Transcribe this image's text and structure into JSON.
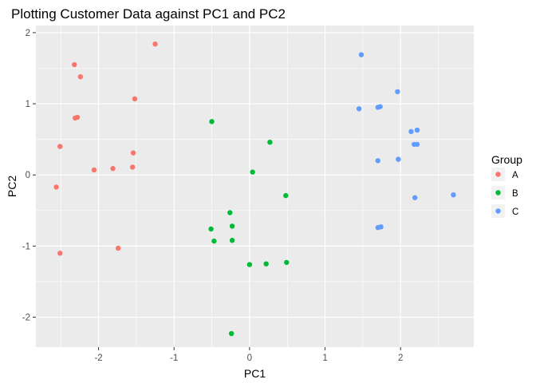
{
  "chart_data": {
    "type": "scatter",
    "title": "Plotting Customer Data against PC1 and PC2",
    "xlabel": "PC1",
    "ylabel": "PC2",
    "xlim": [
      -2.83,
      2.97
    ],
    "ylim": [
      -2.42,
      2.1
    ],
    "xticks": [
      -2,
      -1,
      0,
      1,
      2
    ],
    "yticks": [
      -2,
      -1,
      0,
      1,
      2
    ],
    "x_tick_labels": [
      "-2",
      "-1",
      "0",
      "1",
      "2"
    ],
    "y_tick_labels": [
      "-2",
      "-1",
      "0",
      "1",
      "2"
    ],
    "grid": true,
    "legend": {
      "title": "Group",
      "position": "right"
    },
    "series": [
      {
        "name": "A",
        "color": "#F8766D",
        "points": [
          [
            -1.25,
            1.84
          ],
          [
            -2.32,
            1.55
          ],
          [
            -2.24,
            1.38
          ],
          [
            -2.28,
            0.81
          ],
          [
            -2.31,
            0.8
          ],
          [
            -1.52,
            1.07
          ],
          [
            -2.51,
            0.4
          ],
          [
            -1.54,
            0.31
          ],
          [
            -2.06,
            0.07
          ],
          [
            -1.81,
            0.09
          ],
          [
            -1.55,
            0.11
          ],
          [
            -2.56,
            -0.17
          ],
          [
            -2.51,
            -1.1
          ],
          [
            -1.74,
            -1.03
          ]
        ]
      },
      {
        "name": "B",
        "color": "#00BA38",
        "points": [
          [
            -0.5,
            0.75
          ],
          [
            0.27,
            0.46
          ],
          [
            0.04,
            0.04
          ],
          [
            0.48,
            -0.29
          ],
          [
            -0.26,
            -0.53
          ],
          [
            -0.23,
            -0.72
          ],
          [
            -0.51,
            -0.76
          ],
          [
            -0.47,
            -0.93
          ],
          [
            -0.23,
            -0.92
          ],
          [
            0.0,
            -1.26
          ],
          [
            0.22,
            -1.25
          ],
          [
            0.49,
            -1.23
          ],
          [
            -0.24,
            -2.23
          ]
        ]
      },
      {
        "name": "C",
        "color": "#619CFF",
        "points": [
          [
            1.48,
            1.69
          ],
          [
            1.96,
            1.17
          ],
          [
            1.45,
            0.93
          ],
          [
            1.7,
            0.95
          ],
          [
            1.73,
            0.96
          ],
          [
            2.14,
            0.61
          ],
          [
            2.22,
            0.63
          ],
          [
            2.18,
            0.43
          ],
          [
            2.22,
            0.43
          ],
          [
            1.7,
            0.2
          ],
          [
            1.97,
            0.22
          ],
          [
            2.19,
            -0.32
          ],
          [
            2.7,
            -0.28
          ],
          [
            1.7,
            -0.74
          ],
          [
            1.74,
            -0.73
          ]
        ]
      }
    ]
  }
}
